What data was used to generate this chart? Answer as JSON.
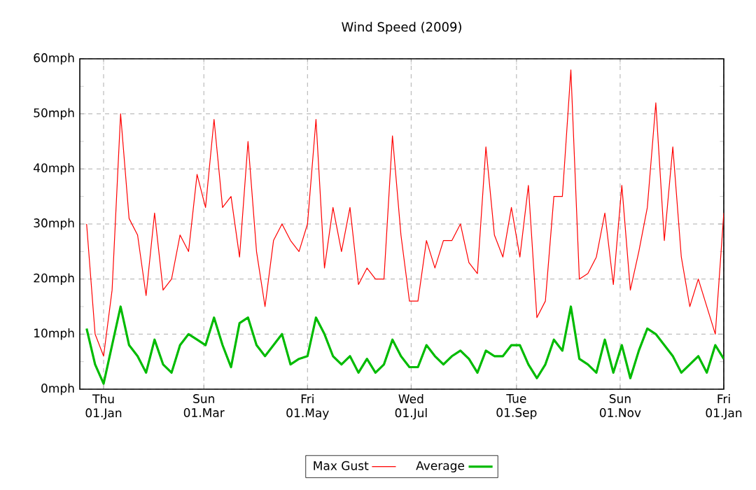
{
  "chart_data": {
    "type": "line",
    "title": "Wind Speed (2009)",
    "x": [
      "2008-12-22",
      "2008-12-27",
      "2009-01-01",
      "2009-01-06",
      "2009-01-11",
      "2009-01-16",
      "2009-01-21",
      "2009-01-26",
      "2009-01-31",
      "2009-02-05",
      "2009-02-10",
      "2009-02-15",
      "2009-02-20",
      "2009-02-25",
      "2009-03-02",
      "2009-03-07",
      "2009-03-12",
      "2009-03-17",
      "2009-03-22",
      "2009-03-27",
      "2009-04-01",
      "2009-04-06",
      "2009-04-11",
      "2009-04-16",
      "2009-04-21",
      "2009-04-26",
      "2009-05-01",
      "2009-05-06",
      "2009-05-11",
      "2009-05-16",
      "2009-05-21",
      "2009-05-26",
      "2009-05-31",
      "2009-06-05",
      "2009-06-10",
      "2009-06-15",
      "2009-06-20",
      "2009-06-25",
      "2009-06-30",
      "2009-07-05",
      "2009-07-10",
      "2009-07-15",
      "2009-07-20",
      "2009-07-25",
      "2009-07-30",
      "2009-08-04",
      "2009-08-09",
      "2009-08-14",
      "2009-08-19",
      "2009-08-24",
      "2009-08-29",
      "2009-09-03",
      "2009-09-08",
      "2009-09-13",
      "2009-09-18",
      "2009-09-23",
      "2009-09-28",
      "2009-10-03",
      "2009-10-08",
      "2009-10-13",
      "2009-10-18",
      "2009-10-23",
      "2009-10-28",
      "2009-11-02",
      "2009-11-07",
      "2009-11-12",
      "2009-11-17",
      "2009-11-22",
      "2009-11-27",
      "2009-12-02",
      "2009-12-07",
      "2009-12-12",
      "2009-12-17",
      "2009-12-22",
      "2009-12-27",
      "2010-01-01"
    ],
    "series": [
      {
        "name": "Max Gust",
        "color": "#ff0000",
        "values": [
          30,
          10,
          6,
          18,
          50,
          31,
          28,
          17,
          32,
          18,
          20,
          28,
          25,
          39,
          33,
          49,
          33,
          35,
          24,
          45,
          25,
          15,
          27,
          30,
          27,
          25,
          30,
          49,
          22,
          33,
          25,
          33,
          19,
          22,
          20,
          20,
          46,
          28,
          16,
          16,
          27,
          22,
          27,
          27,
          30,
          23,
          21,
          44,
          28,
          24,
          33,
          24,
          37,
          13,
          16,
          35,
          35,
          58,
          20,
          21,
          24,
          32,
          19,
          37,
          18,
          25,
          33,
          52,
          27,
          44,
          24,
          15,
          20,
          15,
          10,
          32
        ]
      },
      {
        "name": "Average",
        "color": "#00bb00",
        "values": [
          11,
          4.5,
          1,
          8,
          15,
          8,
          6,
          3,
          9,
          4.5,
          3,
          8,
          10,
          9,
          8,
          13,
          8,
          4,
          12,
          13,
          8,
          6,
          8,
          10,
          4.5,
          5.5,
          6,
          13,
          10,
          6,
          4.5,
          6,
          3,
          5.5,
          3,
          4.5,
          9,
          6,
          4,
          4,
          8,
          6,
          4.5,
          6,
          7,
          5.5,
          3,
          7,
          6,
          6,
          8,
          8,
          4.5,
          2,
          4.5,
          9,
          7,
          15,
          5.5,
          4.5,
          3,
          9,
          3,
          8,
          2,
          7,
          11,
          10,
          8,
          6,
          3,
          4.5,
          6,
          3,
          8,
          5.5
        ]
      }
    ],
    "xlim": [
      "2008-12-18",
      "2010-01-01"
    ],
    "xticks": [
      {
        "value": "2009-01-01",
        "label": "Thu 01.Jan"
      },
      {
        "value": "2009-03-01",
        "label": "Sun 01.Mar"
      },
      {
        "value": "2009-05-01",
        "label": "Fri 01.May"
      },
      {
        "value": "2009-07-01",
        "label": "Wed 01.Jul"
      },
      {
        "value": "2009-09-01",
        "label": "Tue 01.Sep"
      },
      {
        "value": "2009-11-01",
        "label": "Sun 01.Nov"
      },
      {
        "value": "2010-01-01",
        "label": "Fri 01.Jan"
      }
    ],
    "ylim": [
      0,
      60
    ],
    "yticks": [
      {
        "value": 0,
        "label": "0mph"
      },
      {
        "value": 10,
        "label": "10mph"
      },
      {
        "value": 20,
        "label": "20mph"
      },
      {
        "value": 30,
        "label": "30mph"
      },
      {
        "value": 40,
        "label": "40mph"
      },
      {
        "value": 50,
        "label": "50mph"
      },
      {
        "value": 60,
        "label": "60mph"
      }
    ],
    "grid": true,
    "legend": "bottom"
  }
}
